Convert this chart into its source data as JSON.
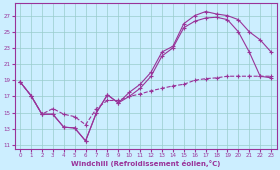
{
  "xlabel": "Windchill (Refroidissement éolien,°C)",
  "bg_color": "#cceeff",
  "grid_color": "#99cccc",
  "line_color": "#993399",
  "xlim": [
    -0.5,
    23.5
  ],
  "ylim": [
    10.5,
    28.5
  ],
  "xticks": [
    0,
    1,
    2,
    3,
    4,
    5,
    6,
    7,
    8,
    9,
    10,
    11,
    12,
    13,
    14,
    15,
    16,
    17,
    18,
    19,
    20,
    21,
    22,
    23
  ],
  "yticks": [
    11,
    13,
    15,
    17,
    19,
    21,
    23,
    25,
    27
  ],
  "line1_x": [
    0,
    1,
    2,
    3,
    4,
    5,
    6,
    7,
    8,
    9,
    10,
    11,
    12,
    13,
    14,
    15,
    16,
    17,
    18,
    19,
    20,
    21,
    22,
    23
  ],
  "line1_y": [
    18.8,
    17.1,
    14.8,
    14.8,
    13.2,
    13.1,
    11.5,
    15.0,
    17.2,
    16.2,
    17.5,
    18.5,
    20.0,
    22.5,
    23.2,
    26.0,
    27.0,
    27.5,
    27.2,
    27.0,
    26.5,
    25.0,
    24.0,
    22.5
  ],
  "line2_x": [
    0,
    1,
    2,
    3,
    4,
    5,
    6,
    7,
    8,
    9,
    10,
    11,
    12,
    13,
    14,
    15,
    16,
    17,
    18,
    19,
    20,
    21,
    22,
    23
  ],
  "line2_y": [
    18.8,
    17.1,
    14.8,
    14.8,
    13.2,
    13.1,
    11.5,
    15.0,
    17.2,
    16.2,
    17.0,
    18.0,
    19.5,
    22.0,
    23.0,
    25.5,
    26.3,
    26.7,
    26.8,
    26.5,
    25.0,
    22.5,
    19.5,
    19.3
  ],
  "line3_x": [
    0,
    1,
    2,
    3,
    4,
    5,
    6,
    7,
    8,
    9,
    10,
    11,
    12,
    13,
    14,
    15,
    16,
    17,
    18,
    19,
    20,
    21,
    22,
    23
  ],
  "line3_y": [
    18.8,
    17.1,
    14.8,
    15.5,
    14.8,
    14.5,
    13.5,
    15.5,
    16.5,
    16.5,
    17.0,
    17.3,
    17.7,
    18.0,
    18.3,
    18.5,
    19.0,
    19.2,
    19.3,
    19.5,
    19.5,
    19.5,
    19.5,
    19.5
  ]
}
